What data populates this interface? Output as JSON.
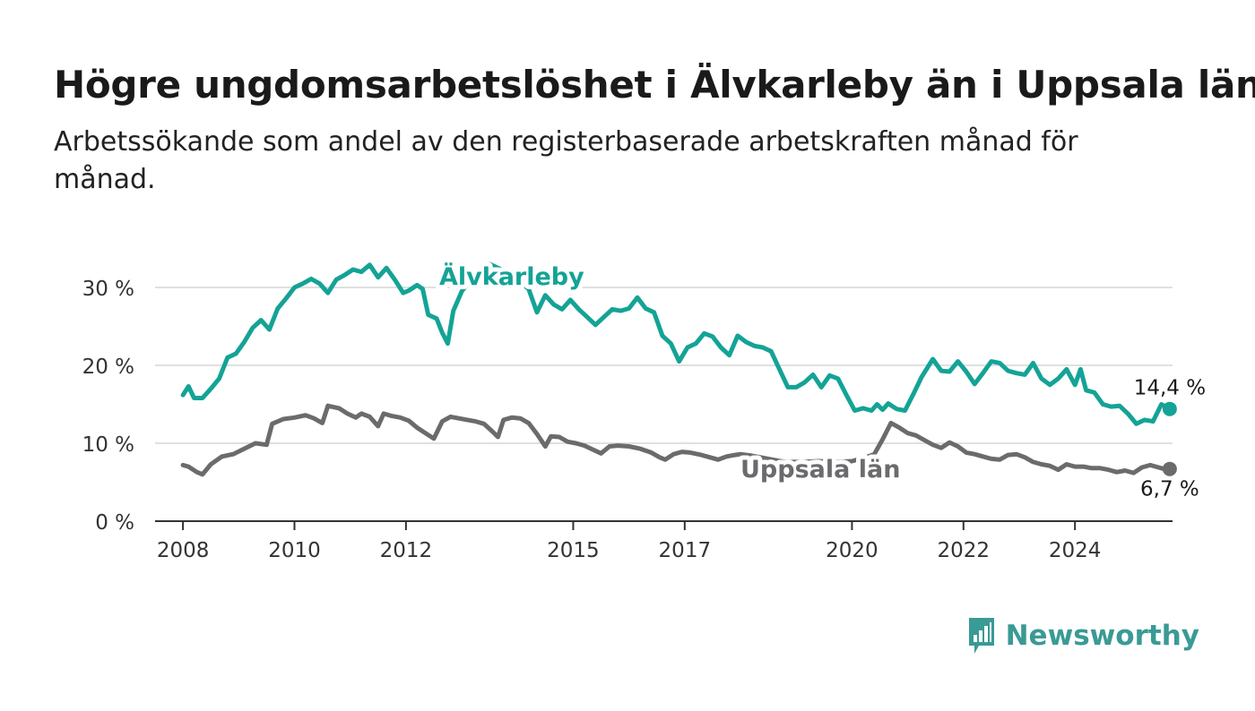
{
  "title": "Högre ungdomsarbetslöshet i Älvkarleby än i Uppsala län",
  "subtitle": "Arbetssökande som andel av den registerbaserade arbetskraften månad för månad.",
  "brand": "Newsworthy",
  "colors": {
    "alvkarleby": "#14a396",
    "uppsala": "#6b6b6e",
    "grid": "#d6d6d6",
    "axis": "#333333"
  },
  "chart_data": {
    "type": "line",
    "x_unit": "year",
    "xlim": [
      2007.5,
      2025.75
    ],
    "ylim": [
      0,
      30
    ],
    "yticks": [
      0,
      10,
      20,
      30
    ],
    "ytick_labels": [
      "0 %",
      "10 %",
      "20 %",
      "30 %"
    ],
    "xticks": [
      2008,
      2010,
      2012,
      2015,
      2017,
      2020,
      2022,
      2024
    ],
    "xtick_labels": [
      "2008",
      "2010",
      "2012",
      "2015",
      "2017",
      "2020",
      "2022",
      "2024"
    ],
    "grid": true,
    "series": [
      {
        "name": "Älvkarleby",
        "color": "#14a396",
        "end_label": "14,4 %",
        "points": [
          [
            2008.0,
            16.2
          ],
          [
            2008.1,
            17.3
          ],
          [
            2008.2,
            15.8
          ],
          [
            2008.35,
            15.8
          ],
          [
            2008.5,
            17.0
          ],
          [
            2008.65,
            18.3
          ],
          [
            2008.8,
            21.0
          ],
          [
            2008.95,
            21.5
          ],
          [
            2009.1,
            23.0
          ],
          [
            2009.25,
            24.8
          ],
          [
            2009.4,
            25.8
          ],
          [
            2009.55,
            24.6
          ],
          [
            2009.7,
            27.3
          ],
          [
            2009.85,
            28.6
          ],
          [
            2010.0,
            30.0
          ],
          [
            2010.15,
            30.5
          ],
          [
            2010.3,
            31.1
          ],
          [
            2010.45,
            30.5
          ],
          [
            2010.6,
            29.3
          ],
          [
            2010.75,
            31.0
          ],
          [
            2010.9,
            31.6
          ],
          [
            2011.05,
            32.3
          ],
          [
            2011.2,
            32.0
          ],
          [
            2011.35,
            32.9
          ],
          [
            2011.5,
            31.3
          ],
          [
            2011.65,
            32.5
          ],
          [
            2011.8,
            31.0
          ],
          [
            2011.95,
            29.3
          ],
          [
            2012.05,
            29.6
          ],
          [
            2012.2,
            30.3
          ],
          [
            2012.3,
            29.8
          ],
          [
            2012.4,
            26.5
          ],
          [
            2012.55,
            26.0
          ],
          [
            2012.65,
            24.2
          ],
          [
            2012.75,
            22.8
          ],
          [
            2012.85,
            27.0
          ],
          [
            2013.0,
            29.5
          ],
          [
            2013.2,
            31.5
          ],
          [
            2013.5,
            33.0
          ],
          [
            2013.8,
            32.0
          ],
          [
            2014.0,
            31.0
          ],
          [
            2014.2,
            29.8
          ],
          [
            2014.35,
            26.8
          ],
          [
            2014.5,
            29.0
          ],
          [
            2014.65,
            27.8
          ],
          [
            2014.8,
            27.2
          ],
          [
            2014.95,
            28.4
          ],
          [
            2015.1,
            27.2
          ],
          [
            2015.25,
            26.2
          ],
          [
            2015.4,
            25.2
          ],
          [
            2015.55,
            26.2
          ],
          [
            2015.7,
            27.2
          ],
          [
            2015.85,
            27.0
          ],
          [
            2016.0,
            27.3
          ],
          [
            2016.15,
            28.7
          ],
          [
            2016.3,
            27.3
          ],
          [
            2016.45,
            26.8
          ],
          [
            2016.6,
            23.8
          ],
          [
            2016.75,
            22.8
          ],
          [
            2016.9,
            20.5
          ],
          [
            2017.05,
            22.3
          ],
          [
            2017.2,
            22.8
          ],
          [
            2017.35,
            24.1
          ],
          [
            2017.5,
            23.7
          ],
          [
            2017.65,
            22.3
          ],
          [
            2017.8,
            21.3
          ],
          [
            2017.95,
            23.8
          ],
          [
            2018.1,
            23.0
          ],
          [
            2018.25,
            22.5
          ],
          [
            2018.4,
            22.3
          ],
          [
            2018.55,
            21.8
          ],
          [
            2018.7,
            19.5
          ],
          [
            2018.85,
            17.2
          ],
          [
            2019.0,
            17.2
          ],
          [
            2019.15,
            17.8
          ],
          [
            2019.3,
            18.8
          ],
          [
            2019.45,
            17.2
          ],
          [
            2019.6,
            18.7
          ],
          [
            2019.75,
            18.3
          ],
          [
            2019.9,
            16.2
          ],
          [
            2020.05,
            14.2
          ],
          [
            2020.2,
            14.5
          ],
          [
            2020.35,
            14.2
          ],
          [
            2020.45,
            15.0
          ],
          [
            2020.55,
            14.3
          ],
          [
            2020.65,
            15.1
          ],
          [
            2020.8,
            14.4
          ],
          [
            2020.95,
            14.2
          ],
          [
            2021.1,
            16.3
          ],
          [
            2021.25,
            18.5
          ],
          [
            2021.45,
            20.8
          ],
          [
            2021.6,
            19.3
          ],
          [
            2021.75,
            19.2
          ],
          [
            2021.9,
            20.5
          ],
          [
            2022.05,
            19.2
          ],
          [
            2022.2,
            17.6
          ],
          [
            2022.35,
            19.0
          ],
          [
            2022.5,
            20.5
          ],
          [
            2022.65,
            20.3
          ],
          [
            2022.8,
            19.3
          ],
          [
            2022.95,
            19.0
          ],
          [
            2023.1,
            18.8
          ],
          [
            2023.25,
            20.3
          ],
          [
            2023.4,
            18.3
          ],
          [
            2023.55,
            17.5
          ],
          [
            2023.7,
            18.3
          ],
          [
            2023.85,
            19.5
          ],
          [
            2024.0,
            17.5
          ],
          [
            2024.1,
            19.5
          ],
          [
            2024.2,
            16.8
          ],
          [
            2024.35,
            16.5
          ],
          [
            2024.5,
            15.0
          ],
          [
            2024.65,
            14.7
          ],
          [
            2024.8,
            14.8
          ],
          [
            2024.95,
            13.8
          ],
          [
            2025.1,
            12.5
          ],
          [
            2025.25,
            13.0
          ],
          [
            2025.4,
            12.8
          ],
          [
            2025.55,
            15.0
          ],
          [
            2025.7,
            14.4
          ]
        ]
      },
      {
        "name": "Uppsala län",
        "color": "#6b6b6e",
        "end_label": "6,7 %",
        "points": [
          [
            2008.0,
            7.2
          ],
          [
            2008.1,
            7.0
          ],
          [
            2008.25,
            6.3
          ],
          [
            2008.35,
            6.0
          ],
          [
            2008.5,
            7.3
          ],
          [
            2008.7,
            8.3
          ],
          [
            2008.9,
            8.6
          ],
          [
            2009.1,
            9.3
          ],
          [
            2009.3,
            10.0
          ],
          [
            2009.5,
            9.8
          ],
          [
            2009.6,
            12.5
          ],
          [
            2009.8,
            13.1
          ],
          [
            2010.0,
            13.3
          ],
          [
            2010.2,
            13.6
          ],
          [
            2010.35,
            13.2
          ],
          [
            2010.5,
            12.6
          ],
          [
            2010.6,
            14.8
          ],
          [
            2010.8,
            14.5
          ],
          [
            2010.95,
            13.8
          ],
          [
            2011.1,
            13.3
          ],
          [
            2011.2,
            13.8
          ],
          [
            2011.35,
            13.4
          ],
          [
            2011.5,
            12.2
          ],
          [
            2011.6,
            13.8
          ],
          [
            2011.75,
            13.5
          ],
          [
            2011.9,
            13.3
          ],
          [
            2012.05,
            12.9
          ],
          [
            2012.2,
            12.0
          ],
          [
            2012.35,
            11.3
          ],
          [
            2012.5,
            10.6
          ],
          [
            2012.65,
            12.8
          ],
          [
            2012.8,
            13.4
          ],
          [
            2012.95,
            13.2
          ],
          [
            2013.1,
            13.0
          ],
          [
            2013.25,
            12.8
          ],
          [
            2013.4,
            12.5
          ],
          [
            2013.55,
            11.5
          ],
          [
            2013.65,
            10.8
          ],
          [
            2013.75,
            13.0
          ],
          [
            2013.9,
            13.3
          ],
          [
            2014.05,
            13.2
          ],
          [
            2014.2,
            12.6
          ],
          [
            2014.35,
            11.2
          ],
          [
            2014.5,
            9.6
          ],
          [
            2014.6,
            10.9
          ],
          [
            2014.75,
            10.8
          ],
          [
            2014.9,
            10.2
          ],
          [
            2015.05,
            10.0
          ],
          [
            2015.2,
            9.7
          ],
          [
            2015.35,
            9.2
          ],
          [
            2015.5,
            8.7
          ],
          [
            2015.65,
            9.6
          ],
          [
            2015.8,
            9.7
          ],
          [
            2016.0,
            9.6
          ],
          [
            2016.2,
            9.3
          ],
          [
            2016.4,
            8.8
          ],
          [
            2016.55,
            8.2
          ],
          [
            2016.65,
            7.9
          ],
          [
            2016.8,
            8.6
          ],
          [
            2016.95,
            8.9
          ],
          [
            2017.1,
            8.8
          ],
          [
            2017.3,
            8.5
          ],
          [
            2017.45,
            8.2
          ],
          [
            2017.6,
            7.9
          ],
          [
            2017.75,
            8.3
          ],
          [
            2017.9,
            8.5
          ],
          [
            2018.0,
            8.6
          ],
          [
            2018.2,
            8.4
          ],
          [
            2018.5,
            8.0
          ],
          [
            2018.8,
            7.6
          ],
          [
            2019.1,
            7.6
          ],
          [
            2019.4,
            7.7
          ],
          [
            2019.7,
            7.6
          ],
          [
            2020.0,
            7.7
          ],
          [
            2020.25,
            8.2
          ],
          [
            2020.4,
            8.6
          ],
          [
            2020.55,
            10.5
          ],
          [
            2020.7,
            12.6
          ],
          [
            2020.85,
            12.0
          ],
          [
            2021.0,
            11.3
          ],
          [
            2021.15,
            11.0
          ],
          [
            2021.3,
            10.4
          ],
          [
            2021.45,
            9.8
          ],
          [
            2021.6,
            9.4
          ],
          [
            2021.75,
            10.1
          ],
          [
            2021.9,
            9.6
          ],
          [
            2022.05,
            8.8
          ],
          [
            2022.2,
            8.6
          ],
          [
            2022.35,
            8.3
          ],
          [
            2022.5,
            8.0
          ],
          [
            2022.65,
            7.9
          ],
          [
            2022.8,
            8.5
          ],
          [
            2022.95,
            8.6
          ],
          [
            2023.1,
            8.2
          ],
          [
            2023.25,
            7.6
          ],
          [
            2023.4,
            7.3
          ],
          [
            2023.55,
            7.1
          ],
          [
            2023.7,
            6.6
          ],
          [
            2023.85,
            7.3
          ],
          [
            2024.0,
            7.0
          ],
          [
            2024.15,
            7.0
          ],
          [
            2024.3,
            6.8
          ],
          [
            2024.45,
            6.8
          ],
          [
            2024.6,
            6.6
          ],
          [
            2024.75,
            6.3
          ],
          [
            2024.9,
            6.5
          ],
          [
            2025.05,
            6.2
          ],
          [
            2025.2,
            6.9
          ],
          [
            2025.35,
            7.2
          ],
          [
            2025.5,
            6.9
          ],
          [
            2025.6,
            6.7
          ],
          [
            2025.7,
            6.7
          ]
        ]
      }
    ]
  }
}
